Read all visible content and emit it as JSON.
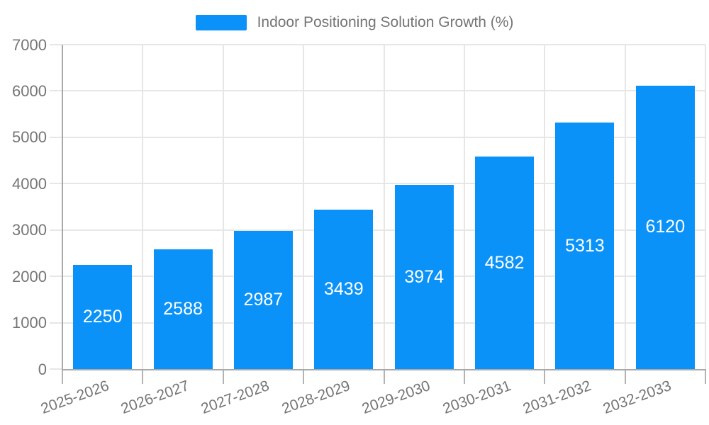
{
  "legend": {
    "label": "Indoor Positioning Solution Growth (%)"
  },
  "chart_data": {
    "type": "bar",
    "title": "Indoor Positioning Solution Growth (%)",
    "categories": [
      "2025-2026",
      "2026-2027",
      "2027-2028",
      "2028-2029",
      "2029-2030",
      "2030-2031",
      "2031-2032",
      "2032-2033"
    ],
    "values": [
      2250,
      2588,
      2987,
      3439,
      3974,
      4582,
      5313,
      6120
    ],
    "xlabel": "",
    "ylabel": "",
    "ylim": [
      0,
      7000
    ],
    "yticks": [
      0,
      1000,
      2000,
      3000,
      4000,
      5000,
      6000,
      7000
    ],
    "grid": true,
    "legend_position": "top-center",
    "value_labels": "inside-center"
  },
  "colors": {
    "bar": "#0a92f8",
    "value_label": "#ffffff",
    "grid": "#e6e6e6",
    "axis": "#a9a9a9",
    "x_tick": "#b3b3b3",
    "tick_label": "#757575",
    "legend_text": "#757575",
    "background": "#ffffff"
  }
}
